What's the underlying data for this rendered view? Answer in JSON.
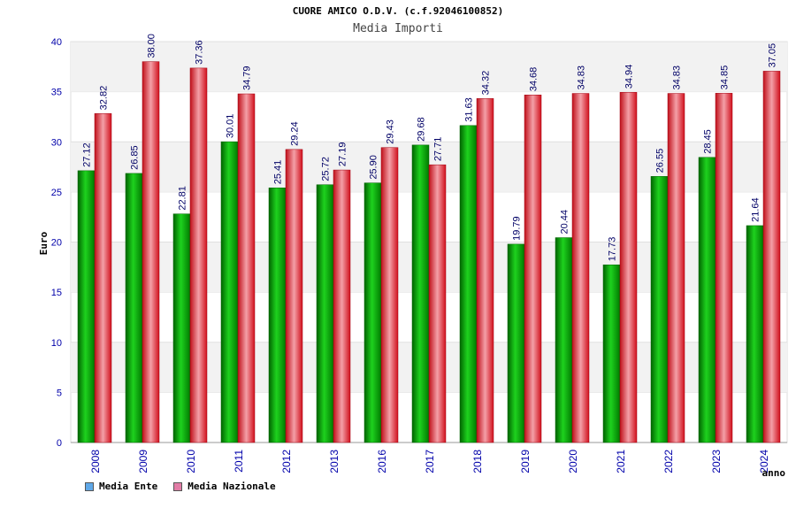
{
  "chart_data": {
    "type": "bar",
    "title": "CUORE AMICO O.D.V. (c.f.92046100852)",
    "subtitle": "Media Importi",
    "xlabel": "anno",
    "ylabel": "Euro",
    "ylim": [
      0,
      40
    ],
    "yticks": [
      "0",
      "5",
      "10",
      "15",
      "20",
      "25",
      "30",
      "35",
      "40"
    ],
    "grid": true,
    "legend_position": "bottom-left",
    "categories": [
      "2008",
      "2009",
      "2010",
      "2011",
      "2012",
      "2013",
      "2016",
      "2017",
      "2018",
      "2019",
      "2020",
      "2021",
      "2022",
      "2023",
      "2024"
    ],
    "series": [
      {
        "name": "Media Ente",
        "color": "#00b000",
        "legend_color": "#5fa8e8",
        "values": [
          27.12,
          26.85,
          22.81,
          30.01,
          25.41,
          25.72,
          25.9,
          29.68,
          31.63,
          19.79,
          20.44,
          17.73,
          26.55,
          28.45,
          21.64
        ],
        "labels": [
          "27.12",
          "26.85",
          "22.81",
          "30.01",
          "25.41",
          "25.72",
          "25.90",
          "29.68",
          "31.63",
          "19.79",
          "20.44",
          "17.73",
          "26.55",
          "28.45",
          "21.64"
        ]
      },
      {
        "name": "Media Nazionale",
        "color": "#e8202a",
        "legend_color": "#e27ca6",
        "values": [
          32.82,
          38.0,
          37.36,
          34.79,
          29.24,
          27.19,
          29.43,
          27.71,
          34.32,
          34.68,
          34.83,
          34.94,
          34.83,
          34.85,
          37.05
        ],
        "labels": [
          "32.82",
          "38.00",
          "37.36",
          "34.79",
          "29.24",
          "27.19",
          "29.43",
          "27.71",
          "34.32",
          "34.68",
          "34.83",
          "34.94",
          "34.83",
          "34.85",
          "37.05"
        ]
      }
    ]
  }
}
